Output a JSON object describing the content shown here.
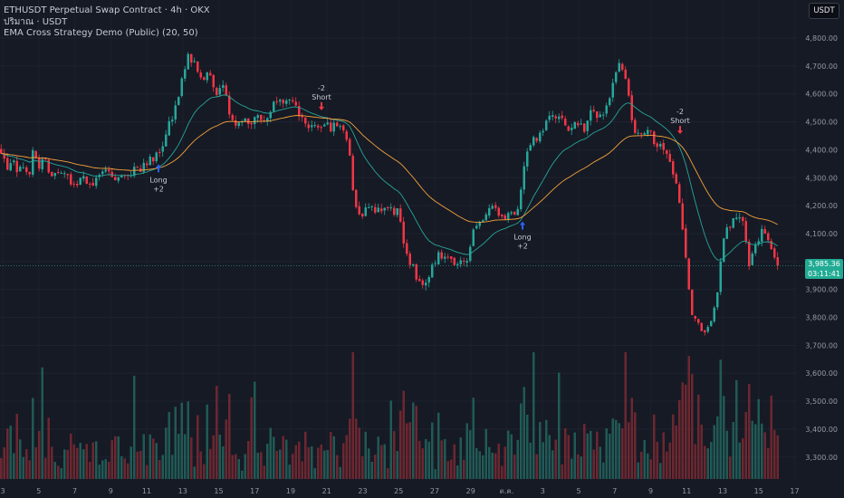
{
  "legend": {
    "symbol": "ETHUSDT Perpetual Swap Contract · 4h · OKX",
    "volume": "ปริมาณ · USDT",
    "strategy": "EMA Cross Strategy Demo (Public) (20, 50)"
  },
  "toolbar": {
    "currency_label": "USDT"
  },
  "last_price": {
    "price": "3,985.36",
    "countdown": "03:11:41"
  },
  "chart_data": {
    "type": "candlestick",
    "symbol": "ETHUSDT",
    "timeframe": "4h",
    "ylim": [
      3225,
      4900
    ],
    "y_ticks": [
      4800,
      4700,
      4600,
      4500,
      4400,
      4300,
      4200,
      4100,
      4000,
      3900,
      3800,
      3700,
      3600,
      3500,
      3400,
      3300
    ],
    "y_tick_labels": [
      "4,800.00",
      "4,700.00",
      "4,600.00",
      "4,500.00",
      "4,400.00",
      "4,300.00",
      "4,200.00",
      "4,100.00",
      "4,000.00",
      "3,900.00",
      "3,800.00",
      "3,700.00",
      "3,600.00",
      "3,500.00",
      "3,400.00",
      "3,300.00"
    ],
    "x_tick_labels": [
      "3",
      "5",
      "7",
      "9",
      "11",
      "13",
      "15",
      "17",
      "19",
      "21",
      "23",
      "25",
      "27",
      "29",
      "ต.ค.",
      "3",
      "5",
      "7",
      "9",
      "11",
      "13",
      "15",
      "17"
    ],
    "close_path": [
      [
        0,
        4400
      ],
      [
        6,
        4330
      ],
      [
        12,
        4370
      ],
      [
        18,
        4300
      ],
      [
        24,
        4350
      ],
      [
        30,
        4300
      ],
      [
        36,
        4400
      ],
      [
        42,
        4330
      ],
      [
        48,
        4370
      ],
      [
        54,
        4300
      ],
      [
        60,
        4320
      ],
      [
        66,
        4300
      ],
      [
        72,
        4310
      ],
      [
        80,
        4270
      ],
      [
        90,
        4300
      ],
      [
        100,
        4280
      ],
      [
        110,
        4310
      ],
      [
        120,
        4320
      ],
      [
        130,
        4290
      ],
      [
        140,
        4310
      ],
      [
        150,
        4330
      ],
      [
        160,
        4350
      ],
      [
        170,
        4380
      ],
      [
        180,
        4420
      ],
      [
        186,
        4500
      ],
      [
        194,
        4560
      ],
      [
        200,
        4650
      ],
      [
        206,
        4750
      ],
      [
        214,
        4700
      ],
      [
        222,
        4650
      ],
      [
        230,
        4680
      ],
      [
        238,
        4600
      ],
      [
        246,
        4620
      ],
      [
        252,
        4520
      ],
      [
        260,
        4500
      ],
      [
        268,
        4520
      ],
      [
        276,
        4500
      ],
      [
        284,
        4520
      ],
      [
        292,
        4500
      ],
      [
        300,
        4560
      ],
      [
        306,
        4600
      ],
      [
        314,
        4570
      ],
      [
        322,
        4560
      ],
      [
        330,
        4530
      ],
      [
        338,
        4460
      ],
      [
        346,
        4480
      ],
      [
        354,
        4490
      ],
      [
        362,
        4480
      ],
      [
        370,
        4490
      ],
      [
        378,
        4480
      ],
      [
        384,
        4420
      ],
      [
        390,
        4200
      ],
      [
        398,
        4170
      ],
      [
        406,
        4200
      ],
      [
        414,
        4180
      ],
      [
        422,
        4200
      ],
      [
        430,
        4180
      ],
      [
        438,
        4180
      ],
      [
        446,
        4050
      ],
      [
        452,
        4000
      ],
      [
        458,
        3950
      ],
      [
        466,
        3920
      ],
      [
        474,
        3960
      ],
      [
        482,
        4020
      ],
      [
        490,
        4030
      ],
      [
        498,
        4000
      ],
      [
        506,
        3990
      ],
      [
        514,
        4000
      ],
      [
        520,
        4100
      ],
      [
        528,
        4130
      ],
      [
        536,
        4160
      ],
      [
        544,
        4200
      ],
      [
        552,
        4150
      ],
      [
        560,
        4180
      ],
      [
        568,
        4150
      ],
      [
        574,
        4250
      ],
      [
        580,
        4380
      ],
      [
        588,
        4430
      ],
      [
        596,
        4450
      ],
      [
        604,
        4500
      ],
      [
        612,
        4530
      ],
      [
        620,
        4500
      ],
      [
        628,
        4470
      ],
      [
        636,
        4500
      ],
      [
        644,
        4470
      ],
      [
        650,
        4550
      ],
      [
        658,
        4520
      ],
      [
        666,
        4530
      ],
      [
        674,
        4600
      ],
      [
        680,
        4710
      ],
      [
        688,
        4690
      ],
      [
        694,
        4560
      ],
      [
        700,
        4450
      ],
      [
        708,
        4440
      ],
      [
        716,
        4460
      ],
      [
        722,
        4430
      ],
      [
        730,
        4420
      ],
      [
        736,
        4380
      ],
      [
        744,
        4300
      ],
      [
        750,
        4200
      ],
      [
        756,
        4000
      ],
      [
        762,
        3820
      ],
      [
        768,
        3780
      ],
      [
        776,
        3760
      ],
      [
        784,
        3780
      ],
      [
        790,
        3850
      ],
      [
        796,
        4050
      ],
      [
        802,
        4120
      ],
      [
        810,
        4150
      ],
      [
        818,
        4180
      ],
      [
        826,
        4000
      ],
      [
        834,
        4080
      ],
      [
        842,
        4110
      ],
      [
        850,
        4050
      ],
      [
        858,
        3985
      ]
    ],
    "series": [
      {
        "name": "EMA 20",
        "color": "#26a69a"
      },
      {
        "name": "EMA 50",
        "color": "#f6a23a"
      }
    ],
    "signals": [
      {
        "type": "buy",
        "text": "Long",
        "qty": "+2",
        "price": 4355
      },
      {
        "type": "sell",
        "text": "Short",
        "qty": "-2",
        "price": 4515
      },
      {
        "type": "buy",
        "text": "Long",
        "qty": "+2",
        "price": 4150
      },
      {
        "type": "sell",
        "text": "Short",
        "qty": "-2",
        "price": 4430
      }
    ],
    "last_price": 3985.36,
    "up_color": "#26a69a",
    "down_color": "#f23645",
    "signal_buy_color": "#2962ff",
    "signal_sell_color": "#f23645"
  }
}
